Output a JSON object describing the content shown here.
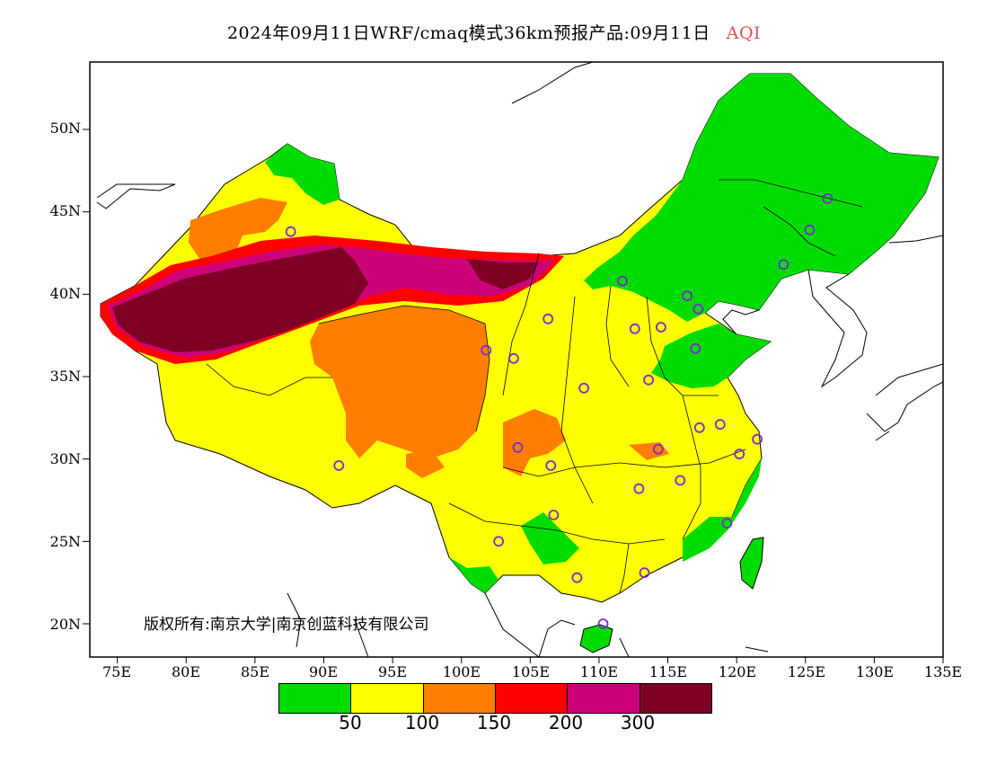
{
  "title": {
    "main": "2024年09月11日WRF/cmaq模式36km预报产品:09月11日",
    "variable": "AQI",
    "variable_color": "#e05050"
  },
  "axes": {
    "y_ticks": [
      "50N",
      "45N",
      "40N",
      "35N",
      "30N",
      "25N",
      "20N"
    ],
    "x_ticks": [
      "75E",
      "80E",
      "85E",
      "90E",
      "95E",
      "100E",
      "105E",
      "110E",
      "115E",
      "120E",
      "125E",
      "130E",
      "135E"
    ]
  },
  "copyright": "版权所有:南京大学|南京创蓝科技有限公司",
  "legend": {
    "colors": [
      "#00dc00",
      "#ffff00",
      "#ff7e00",
      "#ff0000",
      "#cc0077",
      "#7e0023"
    ],
    "ticks": [
      "50",
      "100",
      "150",
      "200",
      "300"
    ]
  },
  "map": {
    "background": "#ffffff",
    "border_color": "#000000",
    "station_marker_color": "#7b2ccf",
    "stations": [
      {
        "lon": 87.6,
        "lat": 43.8
      },
      {
        "lon": 91.1,
        "lat": 29.6
      },
      {
        "lon": 101.8,
        "lat": 36.6
      },
      {
        "lon": 103.8,
        "lat": 36.1
      },
      {
        "lon": 106.3,
        "lat": 38.5
      },
      {
        "lon": 111.7,
        "lat": 40.8
      },
      {
        "lon": 112.6,
        "lat": 37.9
      },
      {
        "lon": 114.5,
        "lat": 38.0
      },
      {
        "lon": 116.4,
        "lat": 39.9
      },
      {
        "lon": 117.2,
        "lat": 39.1
      },
      {
        "lon": 117.0,
        "lat": 36.7
      },
      {
        "lon": 113.6,
        "lat": 34.8
      },
      {
        "lon": 108.9,
        "lat": 34.3
      },
      {
        "lon": 104.1,
        "lat": 30.7
      },
      {
        "lon": 106.5,
        "lat": 29.6
      },
      {
        "lon": 106.7,
        "lat": 26.6
      },
      {
        "lon": 102.7,
        "lat": 25.0
      },
      {
        "lon": 108.4,
        "lat": 22.8
      },
      {
        "lon": 113.3,
        "lat": 23.1
      },
      {
        "lon": 110.3,
        "lat": 20.0
      },
      {
        "lon": 119.3,
        "lat": 26.1
      },
      {
        "lon": 115.9,
        "lat": 28.7
      },
      {
        "lon": 112.9,
        "lat": 28.2
      },
      {
        "lon": 114.3,
        "lat": 30.6
      },
      {
        "lon": 117.3,
        "lat": 31.9
      },
      {
        "lon": 118.8,
        "lat": 32.1
      },
      {
        "lon": 120.2,
        "lat": 30.3
      },
      {
        "lon": 121.5,
        "lat": 31.2
      },
      {
        "lon": 123.4,
        "lat": 41.8
      },
      {
        "lon": 125.3,
        "lat": 43.9
      },
      {
        "lon": 126.6,
        "lat": 45.8
      }
    ]
  }
}
